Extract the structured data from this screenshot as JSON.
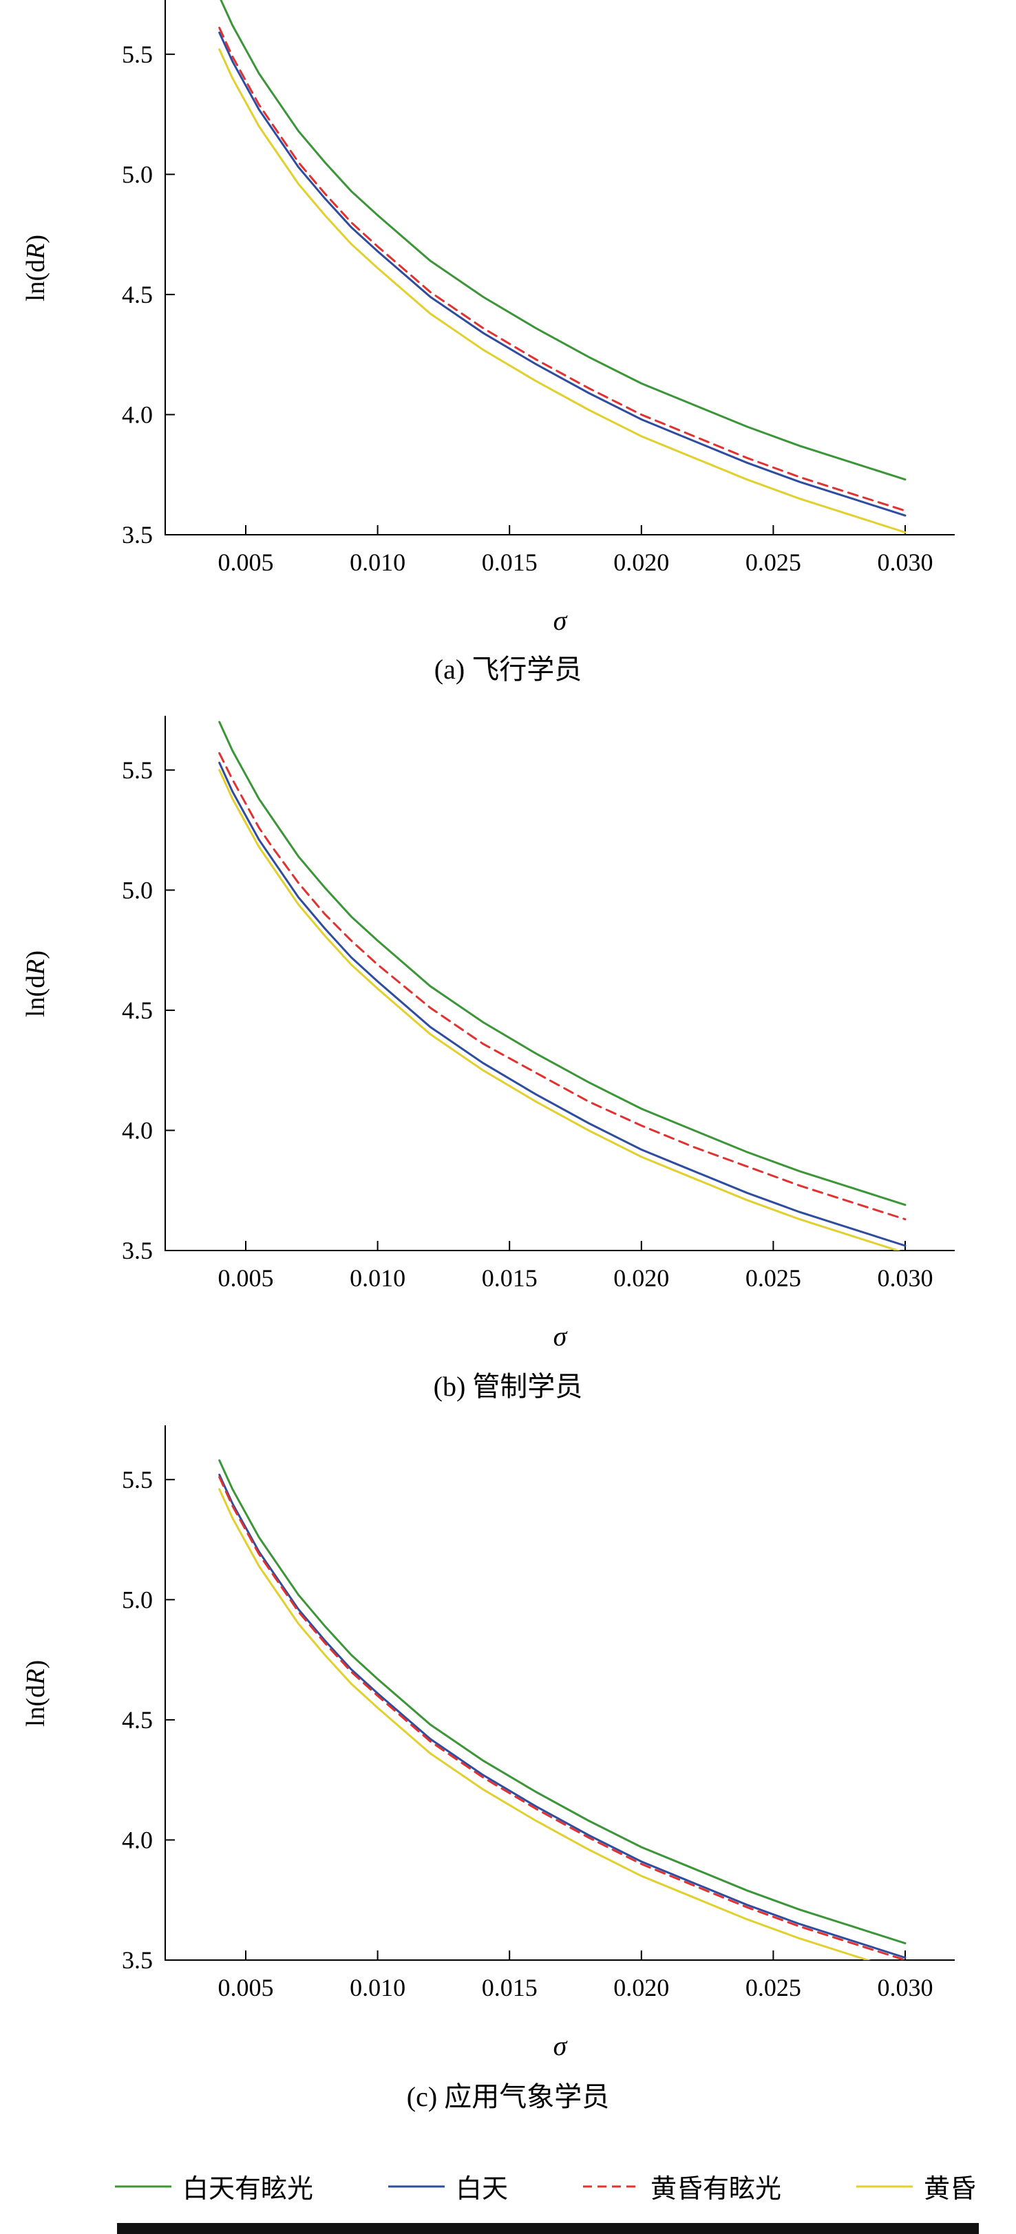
{
  "figure": {
    "xlabel": "σ",
    "ylabel": "ln(dR)",
    "ylabel_parts": [
      {
        "t": "ln(d",
        "style": "normal"
      },
      {
        "t": "R",
        "style": "italic"
      },
      {
        "t": ")",
        "style": "normal"
      }
    ],
    "x_ticks": [
      "0.005",
      "0.010",
      "0.015",
      "0.020",
      "0.025",
      "0.030"
    ],
    "y_ticks": [
      "3.5",
      "4.0",
      "4.5",
      "5.0",
      "5.5"
    ],
    "xlim": [
      0.002,
      0.0309
    ],
    "ylim": [
      3.5,
      5.72
    ],
    "legend": [
      {
        "key": "day-glare",
        "label": "白天有眩光",
        "color": "#3C9639",
        "dash": "solid"
      },
      {
        "key": "day",
        "label": "白天",
        "color": "#2F4D9E",
        "dash": "solid"
      },
      {
        "key": "dusk-glare",
        "label": "黄昏有眩光",
        "color": "#E13232",
        "dash": "dashed"
      },
      {
        "key": "dusk",
        "label": "黄昏",
        "color": "#E2D02E",
        "dash": "solid"
      }
    ]
  },
  "chart_data": [
    {
      "type": "line",
      "caption": "(a) 飞行学员",
      "xlabel": "σ",
      "ylabel": "ln(dR)",
      "xlim": [
        0.002,
        0.0309
      ],
      "ylim": [
        3.5,
        5.72
      ],
      "x": [
        0.004,
        0.0045,
        0.005,
        0.0055,
        0.006,
        0.007,
        0.008,
        0.009,
        0.01,
        0.012,
        0.014,
        0.016,
        0.018,
        0.02,
        0.022,
        0.024,
        0.026,
        0.028,
        0.03
      ],
      "series": [
        {
          "key": "day-glare",
          "name": "白天有眩光",
          "color": "#3C9639",
          "dash": "solid",
          "values": [
            5.74,
            5.62,
            5.52,
            5.42,
            5.34,
            5.18,
            5.05,
            4.93,
            4.83,
            4.64,
            4.49,
            4.36,
            4.24,
            4.13,
            4.04,
            3.95,
            3.87,
            3.8,
            3.73
          ]
        },
        {
          "key": "day",
          "name": "白天",
          "color": "#2F4D9E",
          "dash": "solid",
          "values": [
            5.59,
            5.47,
            5.37,
            5.27,
            5.19,
            5.03,
            4.9,
            4.78,
            4.68,
            4.49,
            4.34,
            4.21,
            4.09,
            3.98,
            3.89,
            3.8,
            3.72,
            3.65,
            3.58
          ]
        },
        {
          "key": "dusk-glare",
          "name": "黄昏有眩光",
          "color": "#E13232",
          "dash": "dashed",
          "values": [
            5.61,
            5.49,
            5.39,
            5.29,
            5.21,
            5.05,
            4.92,
            4.8,
            4.7,
            4.51,
            4.36,
            4.23,
            4.11,
            4.0,
            3.91,
            3.82,
            3.74,
            3.67,
            3.6
          ]
        },
        {
          "key": "dusk",
          "name": "黄昏",
          "color": "#E2D02E",
          "dash": "solid",
          "values": [
            5.52,
            5.4,
            5.3,
            5.2,
            5.12,
            4.96,
            4.83,
            4.71,
            4.61,
            4.42,
            4.27,
            4.14,
            4.02,
            3.91,
            3.82,
            3.73,
            3.65,
            3.58,
            3.51
          ]
        }
      ]
    },
    {
      "type": "line",
      "caption": "(b) 管制学员",
      "xlabel": "σ",
      "ylabel": "ln(dR)",
      "xlim": [
        0.002,
        0.0309
      ],
      "ylim": [
        3.5,
        5.72
      ],
      "x": [
        0.004,
        0.0045,
        0.005,
        0.0055,
        0.006,
        0.007,
        0.008,
        0.009,
        0.01,
        0.012,
        0.014,
        0.016,
        0.018,
        0.02,
        0.022,
        0.024,
        0.026,
        0.028,
        0.03
      ],
      "series": [
        {
          "key": "day-glare",
          "name": "白天有眩光",
          "color": "#3C9639",
          "dash": "solid",
          "values": [
            5.7,
            5.58,
            5.48,
            5.38,
            5.3,
            5.14,
            5.01,
            4.89,
            4.79,
            4.6,
            4.45,
            4.32,
            4.2,
            4.09,
            4.0,
            3.91,
            3.83,
            3.76,
            3.69
          ]
        },
        {
          "key": "day",
          "name": "白天",
          "color": "#2F4D9E",
          "dash": "solid",
          "values": [
            5.53,
            5.41,
            5.31,
            5.21,
            5.13,
            4.97,
            4.84,
            4.72,
            4.62,
            4.43,
            4.28,
            4.15,
            4.03,
            3.92,
            3.83,
            3.74,
            3.66,
            3.59,
            3.52
          ]
        },
        {
          "key": "dusk-glare",
          "name": "黄昏有眩光",
          "color": "#E13232",
          "dash": "dashed",
          "values": [
            5.57,
            5.46,
            5.36,
            5.26,
            5.18,
            5.03,
            4.9,
            4.79,
            4.69,
            4.51,
            4.36,
            4.24,
            4.12,
            4.02,
            3.93,
            3.85,
            3.77,
            3.7,
            3.63
          ]
        },
        {
          "key": "dusk",
          "name": "黄昏",
          "color": "#E2D02E",
          "dash": "solid",
          "values": [
            5.5,
            5.38,
            5.28,
            5.18,
            5.1,
            4.94,
            4.81,
            4.69,
            4.59,
            4.4,
            4.25,
            4.12,
            4.0,
            3.89,
            3.8,
            3.71,
            3.63,
            3.56,
            3.49
          ]
        }
      ]
    },
    {
      "type": "line",
      "caption": "(c) 应用气象学员",
      "xlabel": "σ",
      "ylabel": "ln(dR)",
      "xlim": [
        0.002,
        0.0309
      ],
      "ylim": [
        3.5,
        5.72
      ],
      "x": [
        0.004,
        0.0045,
        0.005,
        0.0055,
        0.006,
        0.007,
        0.008,
        0.009,
        0.01,
        0.012,
        0.014,
        0.016,
        0.018,
        0.02,
        0.022,
        0.024,
        0.026,
        0.028,
        0.03
      ],
      "series": [
        {
          "key": "day-glare",
          "name": "白天有眩光",
          "color": "#3C9639",
          "dash": "solid",
          "values": [
            5.58,
            5.46,
            5.36,
            5.26,
            5.18,
            5.02,
            4.89,
            4.77,
            4.67,
            4.48,
            4.33,
            4.2,
            4.08,
            3.97,
            3.88,
            3.79,
            3.71,
            3.64,
            3.57
          ]
        },
        {
          "key": "day",
          "name": "白天",
          "color": "#2F4D9E",
          "dash": "solid",
          "values": [
            5.52,
            5.4,
            5.3,
            5.2,
            5.12,
            4.96,
            4.83,
            4.71,
            4.61,
            4.42,
            4.27,
            4.14,
            4.02,
            3.91,
            3.82,
            3.73,
            3.65,
            3.58,
            3.51
          ]
        },
        {
          "key": "dusk-glare",
          "name": "黄昏有眩光",
          "color": "#E13232",
          "dash": "dashed",
          "values": [
            5.51,
            5.39,
            5.29,
            5.19,
            5.11,
            4.95,
            4.82,
            4.7,
            4.6,
            4.41,
            4.26,
            4.13,
            4.01,
            3.9,
            3.81,
            3.72,
            3.64,
            3.57,
            3.5
          ]
        },
        {
          "key": "dusk",
          "name": "黄昏",
          "color": "#E2D02E",
          "dash": "solid",
          "values": [
            5.46,
            5.34,
            5.24,
            5.14,
            5.06,
            4.9,
            4.77,
            4.65,
            4.55,
            4.36,
            4.21,
            4.08,
            3.96,
            3.85,
            3.76,
            3.67,
            3.59,
            3.52,
            3.45
          ]
        }
      ]
    }
  ]
}
